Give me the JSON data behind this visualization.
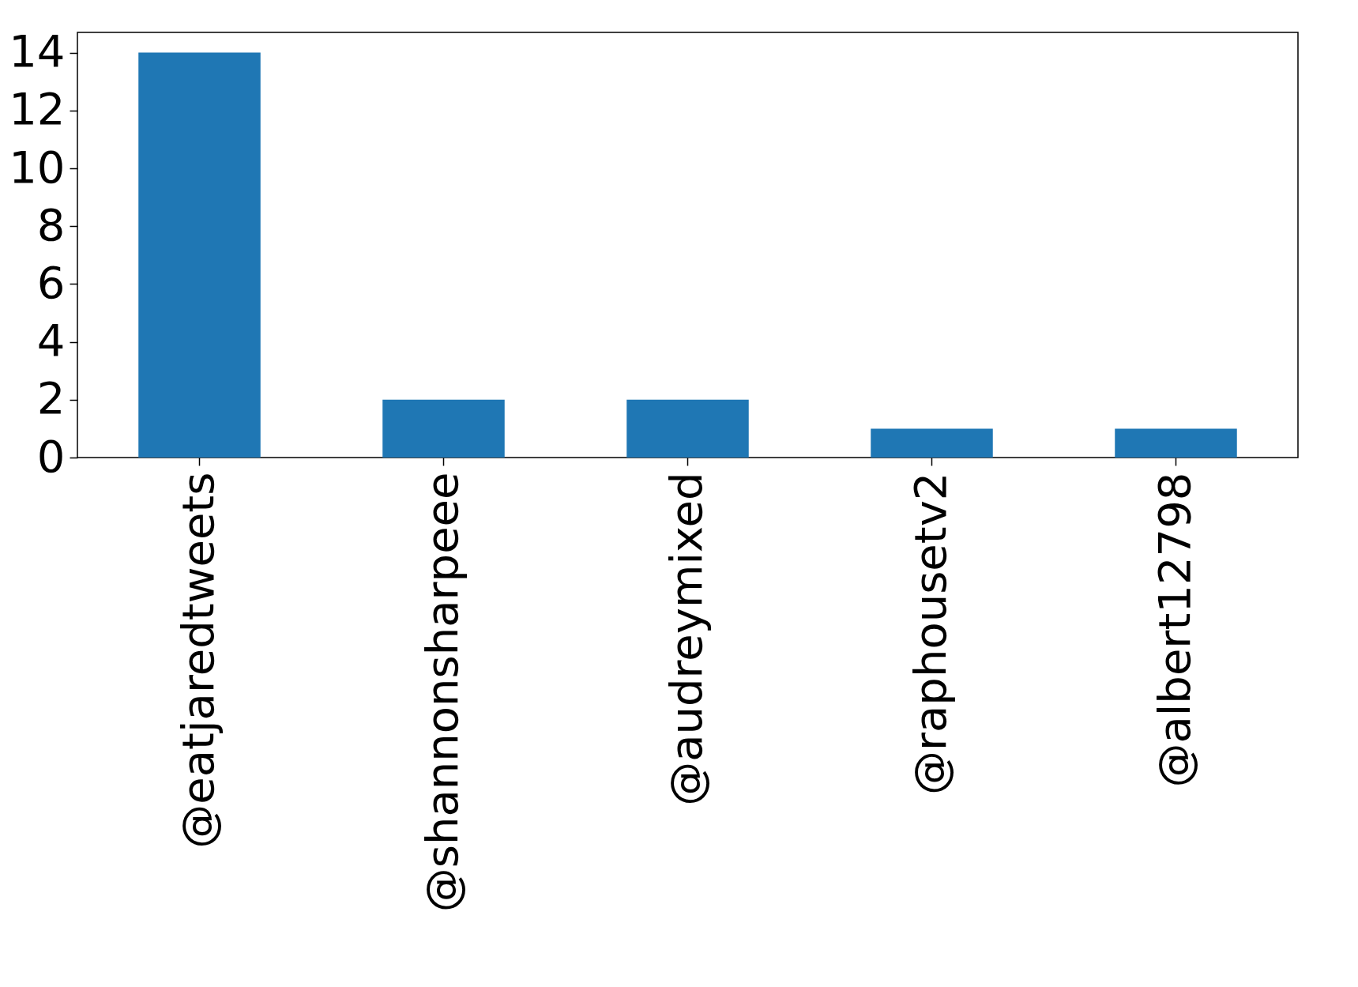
{
  "chart_data": {
    "type": "bar",
    "categories": [
      "@eatjaredtweets",
      "@shannonsharpeee",
      "@audreymixed",
      "@raphousetv2",
      "@albert12798"
    ],
    "values": [
      14,
      2,
      2,
      1,
      1
    ],
    "color": "#1f77b4",
    "ylim": [
      0,
      14.7
    ],
    "yticks": [
      0,
      2,
      4,
      6,
      8,
      10,
      12,
      14
    ],
    "grid": false
  }
}
